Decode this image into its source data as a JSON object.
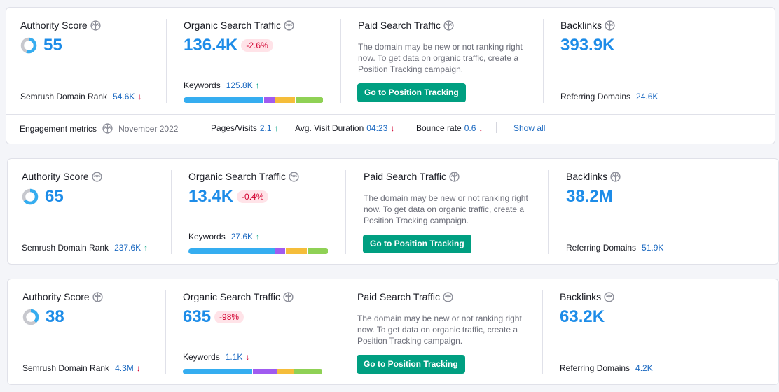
{
  "labels": {
    "authority_score": "Authority Score",
    "organic_search_traffic": "Organic Search Traffic",
    "paid_search_traffic": "Paid Search Traffic",
    "backlinks": "Backlinks",
    "domain_rank": "Semrush Domain Rank",
    "keywords": "Keywords",
    "referring_domains": "Referring Domains",
    "paid_note": "The domain may be new or not ranking right now. To get data on organic traffic, create a Position Tracking campaign.",
    "position_tracking_button": "Go to Position Tracking"
  },
  "icons": {
    "info": "info-icon",
    "arrow_up": "↑",
    "arrow_down": "↓"
  },
  "colors": {
    "accent": "#1d8ce8",
    "button": "#009f81",
    "negative": "#d1002f",
    "bar_segments": [
      "#35adf0",
      "#a05bf0",
      "#f5bd3a",
      "#8fd155"
    ]
  },
  "cards": [
    {
      "authority_score": "55",
      "authority_fraction": 0.55,
      "organic_traffic": "136.4K",
      "organic_change": "-2.6%",
      "domain_rank": "54.6K",
      "domain_rank_trend": "↓",
      "keywords": "125.8K",
      "keywords_trend": "↑",
      "keyword_distribution": [
        0.58,
        0.08,
        0.14,
        0.2
      ],
      "backlinks": "393.9K",
      "referring_domains": "24.6K"
    },
    {
      "authority_score": "65",
      "authority_fraction": 0.65,
      "organic_traffic": "13.4K",
      "organic_change": "-0.4%",
      "domain_rank": "237.6K",
      "domain_rank_trend": "↑",
      "keywords": "27.6K",
      "keywords_trend": "↑",
      "keyword_distribution": [
        0.63,
        0.07,
        0.15,
        0.15
      ],
      "backlinks": "38.2M",
      "referring_domains": "51.9K"
    },
    {
      "authority_score": "38",
      "authority_fraction": 0.38,
      "organic_traffic": "635",
      "organic_change": "-98%",
      "domain_rank": "4.3M",
      "domain_rank_trend": "↓",
      "keywords": "1.1K",
      "keywords_trend": "↓",
      "keyword_distribution": [
        0.5,
        0.17,
        0.12,
        0.2
      ],
      "backlinks": "63.2K",
      "referring_domains": "4.2K"
    }
  ],
  "engagement": {
    "label": "Engagement metrics",
    "period": "November 2022",
    "pages_visits_label": "Pages/Visits",
    "pages_visits_value": "2.1",
    "pages_visits_trend": "↑",
    "visit_duration_label": "Avg. Visit Duration",
    "visit_duration_value": "04:23",
    "visit_duration_trend": "↓",
    "bounce_rate_label": "Bounce rate",
    "bounce_rate_value": "0.6",
    "bounce_rate_trend": "↓",
    "show_all": "Show all"
  }
}
